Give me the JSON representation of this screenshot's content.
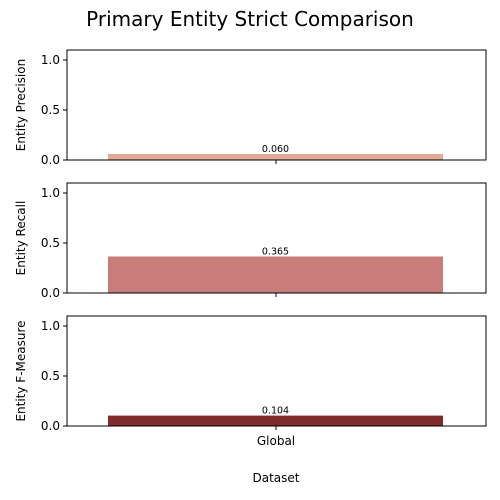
{
  "figure": {
    "suptitle": "Primary Entity Strict Comparison",
    "xlabel": "Dataset"
  },
  "chart_data": [
    {
      "type": "bar",
      "categories": [
        "Global"
      ],
      "values": [
        0.06
      ],
      "value_labels": [
        "0.060"
      ],
      "ylabel": "Entity Precision",
      "ylim": [
        0,
        1.1
      ],
      "yticks": [
        0.0,
        0.5,
        1.0
      ],
      "ytick_labels": [
        "0.0",
        "0.5",
        "1.0"
      ],
      "color": "#e0aa9a",
      "show_xtick_labels": false
    },
    {
      "type": "bar",
      "categories": [
        "Global"
      ],
      "values": [
        0.365
      ],
      "value_labels": [
        "0.365"
      ],
      "ylabel": "Entity Recall",
      "ylim": [
        0,
        1.1
      ],
      "yticks": [
        0.0,
        0.5,
        1.0
      ],
      "ytick_labels": [
        "0.0",
        "0.5",
        "1.0"
      ],
      "color": "#c87d7b",
      "show_xtick_labels": false
    },
    {
      "type": "bar",
      "categories": [
        "Global"
      ],
      "values": [
        0.104
      ],
      "value_labels": [
        "0.104"
      ],
      "ylabel": "Entity F-Measure",
      "ylim": [
        0,
        1.1
      ],
      "yticks": [
        0.0,
        0.5,
        1.0
      ],
      "ytick_labels": [
        "0.0",
        "0.5",
        "1.0"
      ],
      "color": "#7f2a2b",
      "show_xtick_labels": true
    }
  ]
}
